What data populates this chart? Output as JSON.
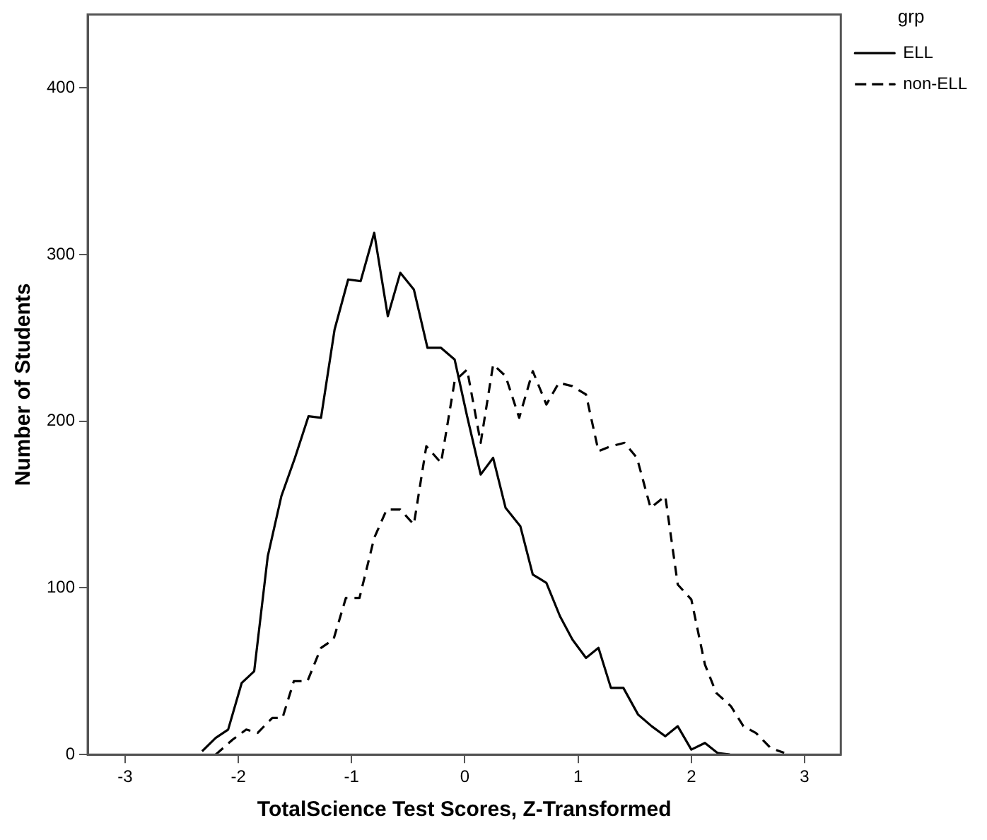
{
  "chart_data": {
    "type": "line",
    "xlabel": "TotalScience Test Scores, Z-Transformed",
    "ylabel": "Number of Students",
    "legend_title": "grp",
    "legend": "top right",
    "grid": false,
    "marker": "none",
    "xlim": [
      -3.33,
      3.32
    ],
    "ylim": [
      0,
      444
    ],
    "xticks": [
      -3,
      -2,
      -1,
      0,
      1,
      2,
      3
    ],
    "yticks": [
      0,
      100,
      200,
      300,
      400
    ],
    "series": [
      {
        "name": "ELL",
        "color": "#000000",
        "line_style": "solid",
        "x": [
          -2.32,
          -2.2,
          -2.09,
          -1.97,
          -1.86,
          -1.74,
          -1.62,
          -1.5,
          -1.38,
          -1.27,
          -1.15,
          -1.03,
          -0.92,
          -0.8,
          -0.68,
          -0.57,
          -0.45,
          -0.33,
          -0.21,
          -0.09,
          0.02,
          0.14,
          0.25,
          0.36,
          0.49,
          0.6,
          0.72,
          0.84,
          0.95,
          1.07,
          1.18,
          1.29,
          1.4,
          1.53,
          1.65,
          1.77,
          1.88,
          2.0,
          2.12,
          2.23,
          2.34
        ],
        "values": [
          2,
          10,
          15,
          43,
          50,
          119,
          155,
          178,
          203,
          202,
          255,
          285,
          284,
          313,
          263,
          289,
          279,
          244,
          244,
          237,
          203,
          168,
          178,
          148,
          137,
          108,
          103,
          83,
          69,
          58,
          64,
          40,
          40,
          24,
          17,
          11,
          17,
          3,
          7,
          1,
          0
        ]
      },
      {
        "name": "non-ELL",
        "color": "#000000",
        "line_style": "dashed",
        "x": [
          -2.2,
          -2.05,
          -1.93,
          -1.83,
          -1.7,
          -1.61,
          -1.51,
          -1.39,
          -1.27,
          -1.16,
          -1.05,
          -0.93,
          -0.8,
          -0.69,
          -0.57,
          -0.45,
          -0.34,
          -0.21,
          -0.09,
          0.02,
          0.14,
          0.25,
          0.36,
          0.48,
          0.6,
          0.72,
          0.83,
          0.95,
          1.07,
          1.18,
          1.29,
          1.41,
          1.52,
          1.64,
          1.77,
          1.88,
          2.0,
          2.12,
          2.22,
          2.35,
          2.46,
          2.57,
          2.7,
          2.82
        ],
        "values": [
          0,
          9,
          15,
          13,
          22,
          22,
          44,
          44,
          64,
          69,
          94,
          94,
          130,
          147,
          147,
          138,
          185,
          175,
          224,
          231,
          187,
          234,
          227,
          202,
          230,
          210,
          223,
          221,
          216,
          182,
          185,
          187,
          178,
          148,
          155,
          102,
          93,
          54,
          37,
          29,
          17,
          13,
          4,
          1
        ]
      }
    ]
  }
}
